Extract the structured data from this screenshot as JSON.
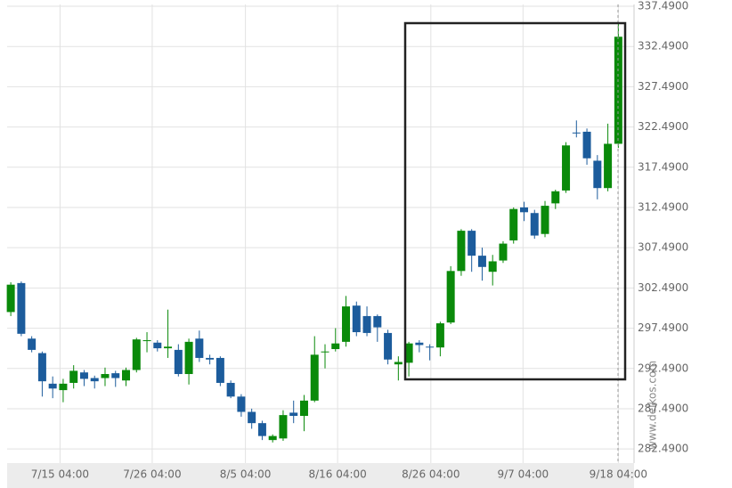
{
  "chart_data": {
    "type": "candlestick",
    "watermark": "www.delkos.com",
    "x": [
      0,
      1,
      2,
      3,
      4,
      5,
      6,
      7,
      8,
      9,
      10,
      11,
      12,
      13,
      14,
      15,
      16,
      17,
      18,
      19,
      20,
      21,
      22,
      23,
      24,
      25,
      26,
      27,
      28,
      29,
      30,
      31,
      32,
      33,
      34,
      35,
      36,
      37,
      38,
      39,
      40,
      41,
      42,
      43,
      44,
      45,
      46,
      47,
      48,
      49,
      50,
      51,
      52,
      53,
      54,
      55,
      56,
      57,
      58
    ],
    "open": [
      299.5,
      303.1,
      296.2,
      294.4,
      290.6,
      289.8,
      290.7,
      292.0,
      291.3,
      291.3,
      291.9,
      291.0,
      292.3,
      295.9,
      295.7,
      295.0,
      294.8,
      291.8,
      296.2,
      293.8,
      293.8,
      290.7,
      289.0,
      287.1,
      285.7,
      283.6,
      283.8,
      287.0,
      286.6,
      288.5,
      294.5,
      294.9,
      295.8,
      300.3,
      299.0,
      299.0,
      296.9,
      293.0,
      293.2,
      295.7,
      295.2,
      295.1,
      298.2,
      304.6,
      309.6,
      306.5,
      304.5,
      305.9,
      308.4,
      312.5,
      311.8,
      309.2,
      313.0,
      314.6,
      321.8,
      321.9,
      318.3,
      314.9,
      320.4
    ],
    "high": [
      303.2,
      303.3,
      296.5,
      294.6,
      291.5,
      291.2,
      292.9,
      292.3,
      291.6,
      292.6,
      292.2,
      292.6,
      296.3,
      297.0,
      296.0,
      299.8,
      295.5,
      296.2,
      297.2,
      294.2,
      294.0,
      291.0,
      289.3,
      287.5,
      286.0,
      284.3,
      287.3,
      288.5,
      289.2,
      296.5,
      295.5,
      297.5,
      301.5,
      300.8,
      300.2,
      299.2,
      297.3,
      294.0,
      295.8,
      296.0,
      295.5,
      298.3,
      305.2,
      309.8,
      309.8,
      307.5,
      306.6,
      308.3,
      312.5,
      313.2,
      312.2,
      313.3,
      314.7,
      320.6,
      323.3,
      322.3,
      319.0,
      322.9,
      335.5
    ],
    "low": [
      299.0,
      296.5,
      294.5,
      289.0,
      288.8,
      288.3,
      290.0,
      290.3,
      290.0,
      290.3,
      290.2,
      290.3,
      292.0,
      294.5,
      294.6,
      293.8,
      291.5,
      290.5,
      293.3,
      293.0,
      290.3,
      288.8,
      286.5,
      285.0,
      283.6,
      283.3,
      283.5,
      285.7,
      284.7,
      288.3,
      292.5,
      294.6,
      295.2,
      296.5,
      296.5,
      295.8,
      293.0,
      291.0,
      291.5,
      294.5,
      293.5,
      294.0,
      298.0,
      304.0,
      304.5,
      303.4,
      302.8,
      305.6,
      308.0,
      310.8,
      308.6,
      308.8,
      312.3,
      314.3,
      321.2,
      317.8,
      313.5,
      314.5,
      319.9
    ],
    "close": [
      302.9,
      296.8,
      294.8,
      290.9,
      290.0,
      290.6,
      292.2,
      291.2,
      290.9,
      291.8,
      291.3,
      292.3,
      296.1,
      296.0,
      295.0,
      295.2,
      291.8,
      295.8,
      293.8,
      293.6,
      290.7,
      289.0,
      287.1,
      285.7,
      284.1,
      284.1,
      286.7,
      286.6,
      288.5,
      294.2,
      294.6,
      295.6,
      300.2,
      297.0,
      296.9,
      297.6,
      293.6,
      293.3,
      295.6,
      295.4,
      295.1,
      298.1,
      304.6,
      309.6,
      306.5,
      305.1,
      305.8,
      308.0,
      312.3,
      311.9,
      309.0,
      312.7,
      314.5,
      320.2,
      321.7,
      318.6,
      314.9,
      320.4,
      333.7
    ],
    "up_color": "#0a8a0a",
    "down_color": "#1c5c9c",
    "xlim": [
      -0.35,
      59.5
    ],
    "xticks": [
      {
        "value": 4.7,
        "label": "7/15 04:00"
      },
      {
        "value": 13.5,
        "label": "7/26 04:00"
      },
      {
        "value": 22.4,
        "label": "8/5 04:00"
      },
      {
        "value": 31.2,
        "label": "8/16 04:00"
      },
      {
        "value": 40.1,
        "label": "8/26 04:00"
      },
      {
        "value": 48.9,
        "label": "9/7 04:00"
      },
      {
        "value": 58,
        "label": "9/18 04:00"
      }
    ],
    "ylim": [
      280.74,
      337.71
    ],
    "yticks": [
      {
        "value": 282.49,
        "label": "282.4900"
      },
      {
        "value": 287.49,
        "label": "287.4900"
      },
      {
        "value": 292.49,
        "label": "292.4900"
      },
      {
        "value": 297.49,
        "label": "297.4900"
      },
      {
        "value": 302.49,
        "label": "302.4900"
      },
      {
        "value": 307.49,
        "label": "307.4900"
      },
      {
        "value": 312.49,
        "label": "312.4900"
      },
      {
        "value": 317.49,
        "label": "317.4900"
      },
      {
        "value": 322.49,
        "label": "322.4900"
      },
      {
        "value": 327.49,
        "label": "327.4900"
      },
      {
        "value": 332.49,
        "label": "332.4900"
      },
      {
        "value": 337.49,
        "label": "337.4900"
      }
    ],
    "grid": true
  }
}
